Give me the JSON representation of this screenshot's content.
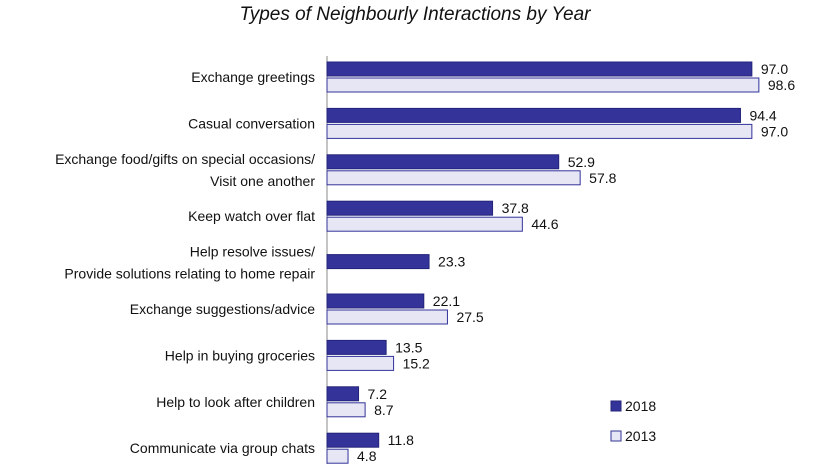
{
  "chart_data": {
    "type": "bar",
    "orientation": "horizontal",
    "title": "Types of Neighbourly Interactions by Year",
    "xlabel": "",
    "ylabel": "",
    "xlim": [
      0,
      100
    ],
    "grid": false,
    "legend_position": "bottom-right",
    "categories": [
      [
        "Exchange greetings"
      ],
      [
        "Casual conversation"
      ],
      [
        "Exchange food/gifts on special occasions/",
        "Visit one another"
      ],
      [
        "Keep watch over flat"
      ],
      [
        "Help resolve issues/",
        "Provide solutions relating to home repair"
      ],
      [
        "Exchange suggestions/advice"
      ],
      [
        "Help in buying groceries"
      ],
      [
        "Help to look after children"
      ],
      [
        "Communicate via group chats"
      ]
    ],
    "series": [
      {
        "name": "2018",
        "color": "#33339a",
        "values": [
          97.0,
          94.4,
          52.9,
          37.8,
          23.3,
          22.1,
          13.5,
          7.2,
          11.8
        ]
      },
      {
        "name": "2013",
        "color": "#e6e6f4",
        "values": [
          98.6,
          97.0,
          57.8,
          44.6,
          null,
          27.5,
          15.2,
          8.7,
          4.8
        ]
      }
    ]
  }
}
